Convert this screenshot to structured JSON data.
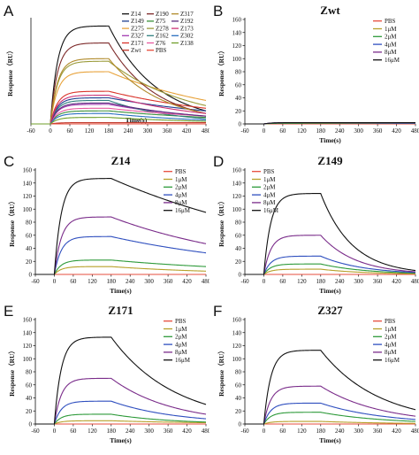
{
  "chart_data": [
    {
      "panel": "A",
      "type": "line",
      "title": "",
      "xlabel": "Time(s)",
      "ylabel": "Response（RU）",
      "xlim": [
        -60,
        480
      ],
      "ylim": [
        0,
        80
      ],
      "xticks": [
        -60,
        0,
        60,
        120,
        180,
        240,
        300,
        360,
        420,
        480
      ],
      "yticks": [],
      "legend": "top-right",
      "legend_columns": 3,
      "series": [
        {
          "name": "Z14",
          "color": "#111111",
          "plateau": 75,
          "end": 10
        },
        {
          "name": "Z149",
          "color": "#1f3f8f",
          "plateau": 20,
          "end": 10
        },
        {
          "name": "Z275",
          "color": "#e8a33c",
          "plateau": 40,
          "end": 18
        },
        {
          "name": "Z327",
          "color": "#a23bb0",
          "plateau": 15,
          "end": 6
        },
        {
          "name": "Z171",
          "color": "#d9342b",
          "plateau": 25,
          "end": 12
        },
        {
          "name": "Zwt",
          "color": "#c0392b",
          "plateau": 1,
          "end": 1
        },
        {
          "name": "Z190",
          "color": "#7d2a2a",
          "plateau": 62,
          "end": 8
        },
        {
          "name": "Z75",
          "color": "#3a8f3a",
          "plateau": 10,
          "end": 5
        },
        {
          "name": "Z278",
          "color": "#9b9b3a",
          "plateau": 48,
          "end": 14
        },
        {
          "name": "Z162",
          "color": "#2f7f7f",
          "plateau": 18,
          "end": 4
        },
        {
          "name": "Z76",
          "color": "#e85aa0",
          "plateau": 12,
          "end": 6
        },
        {
          "name": "PBS",
          "color": "#e74c3c",
          "plateau": 0,
          "end": 0
        },
        {
          "name": "Z317",
          "color": "#b08a2a",
          "plateau": 50,
          "end": 8
        },
        {
          "name": "Z192",
          "color": "#5b2a7d",
          "plateau": 16,
          "end": 6
        },
        {
          "name": "Z173",
          "color": "#cc3377",
          "plateau": 22,
          "end": 8
        },
        {
          "name": "Z302",
          "color": "#2a6fbf",
          "plateau": 8,
          "end": 3
        },
        {
          "name": "Z138",
          "color": "#6f9f2a",
          "plateau": 5,
          "end": 2
        }
      ]
    },
    {
      "panel": "B",
      "type": "line",
      "title": "Zwt",
      "xlabel": "Time(s)",
      "ylabel": "Response（RU）",
      "xlim": [
        -60,
        480
      ],
      "ylim": [
        0,
        160
      ],
      "xticks": [
        -60,
        0,
        60,
        120,
        180,
        240,
        300,
        360,
        420,
        480
      ],
      "yticks": [
        0,
        20,
        40,
        60,
        80,
        100,
        120,
        140,
        160
      ],
      "legend": "top-right",
      "series": [
        {
          "name": "PBS",
          "color": "#e74c3c",
          "plateau": 0,
          "end": 0
        },
        {
          "name": "1μM",
          "color": "#b7a12a",
          "plateau": 1,
          "end": 1
        },
        {
          "name": "2μM",
          "color": "#2e9a3a",
          "plateau": 1,
          "end": 1
        },
        {
          "name": "4μM",
          "color": "#2f4fbf",
          "plateau": 2,
          "end": 1
        },
        {
          "name": "8μM",
          "color": "#7a2c8a",
          "plateau": 2,
          "end": 2
        },
        {
          "name": "16μM",
          "color": "#111111",
          "plateau": 2,
          "end": 2
        }
      ]
    },
    {
      "panel": "C",
      "type": "line",
      "title": "Z14",
      "xlabel": "Time(s)",
      "ylabel": "Response（RU）",
      "xlim": [
        -60,
        480
      ],
      "ylim": [
        0,
        160
      ],
      "xticks": [
        -60,
        0,
        60,
        120,
        180,
        240,
        300,
        360,
        420,
        480
      ],
      "yticks": [
        0,
        20,
        40,
        60,
        80,
        100,
        120,
        140,
        160
      ],
      "legend": "top-right",
      "series": [
        {
          "name": "PBS",
          "color": "#e74c3c",
          "plateau": 0,
          "end": 0
        },
        {
          "name": "1μM",
          "color": "#b7a12a",
          "plateau": 12,
          "end": 5
        },
        {
          "name": "2μM",
          "color": "#2e9a3a",
          "plateau": 22,
          "end": 12
        },
        {
          "name": "4μM",
          "color": "#2f4fbf",
          "plateau": 58,
          "end": 33
        },
        {
          "name": "8μM",
          "color": "#7a2c8a",
          "plateau": 88,
          "end": 47
        },
        {
          "name": "16μM",
          "color": "#111111",
          "plateau": 147,
          "end": 95
        }
      ]
    },
    {
      "panel": "D",
      "type": "line",
      "title": "Z149",
      "xlabel": "Time(s)",
      "ylabel": "Response（RU）",
      "xlim": [
        -60,
        480
      ],
      "ylim": [
        0,
        160
      ],
      "xticks": [
        -60,
        0,
        60,
        120,
        180,
        240,
        300,
        360,
        420,
        480
      ],
      "yticks": [
        0,
        20,
        40,
        60,
        80,
        100,
        120,
        140,
        160
      ],
      "legend": "top-left",
      "series": [
        {
          "name": "PBS",
          "color": "#e74c3c",
          "plateau": 0,
          "end": 0
        },
        {
          "name": "1μM",
          "color": "#b7a12a",
          "plateau": 8,
          "end": 1
        },
        {
          "name": "2μM",
          "color": "#2e9a3a",
          "plateau": 16,
          "end": 2
        },
        {
          "name": "4μM",
          "color": "#2f4fbf",
          "plateau": 28,
          "end": 3
        },
        {
          "name": "8μM",
          "color": "#7a2c8a",
          "plateau": 60,
          "end": 4
        },
        {
          "name": "16μM",
          "color": "#111111",
          "plateau": 124,
          "end": 6
        }
      ]
    },
    {
      "panel": "E",
      "type": "line",
      "title": "Z171",
      "xlabel": "Time(s)",
      "ylabel": "Response（RU）",
      "xlim": [
        -60,
        480
      ],
      "ylim": [
        0,
        160
      ],
      "xticks": [
        -60,
        0,
        60,
        120,
        180,
        240,
        300,
        360,
        420,
        480
      ],
      "yticks": [
        0,
        20,
        40,
        60,
        80,
        100,
        120,
        140,
        160
      ],
      "legend": "top-right",
      "series": [
        {
          "name": "PBS",
          "color": "#e74c3c",
          "plateau": 0,
          "end": 0
        },
        {
          "name": "1μM",
          "color": "#b7a12a",
          "plateau": 5,
          "end": 2
        },
        {
          "name": "2μM",
          "color": "#2e9a3a",
          "plateau": 15,
          "end": 3
        },
        {
          "name": "4μM",
          "color": "#2f4fbf",
          "plateau": 35,
          "end": 8
        },
        {
          "name": "8μM",
          "color": "#7a2c8a",
          "plateau": 70,
          "end": 15
        },
        {
          "name": "16μM",
          "color": "#111111",
          "plateau": 133,
          "end": 30
        }
      ]
    },
    {
      "panel": "F",
      "type": "line",
      "title": "Z327",
      "xlabel": "Time(s)",
      "ylabel": "Response（RU）",
      "xlim": [
        -60,
        480
      ],
      "ylim": [
        0,
        160
      ],
      "xticks": [
        -60,
        0,
        60,
        120,
        180,
        240,
        300,
        360,
        420,
        480
      ],
      "yticks": [
        0,
        20,
        40,
        60,
        80,
        100,
        120,
        140,
        160
      ],
      "legend": "top-right",
      "series": [
        {
          "name": "PBS",
          "color": "#e74c3c",
          "plateau": 0,
          "end": 0
        },
        {
          "name": "1μM",
          "color": "#b7a12a",
          "plateau": 4,
          "end": 1
        },
        {
          "name": "2μM",
          "color": "#2e9a3a",
          "plateau": 18,
          "end": 4
        },
        {
          "name": "4μM",
          "color": "#2f4fbf",
          "plateau": 32,
          "end": 7
        },
        {
          "name": "8μM",
          "color": "#7a2c8a",
          "plateau": 58,
          "end": 12
        },
        {
          "name": "16μM",
          "color": "#111111",
          "plateau": 113,
          "end": 22
        }
      ]
    }
  ]
}
